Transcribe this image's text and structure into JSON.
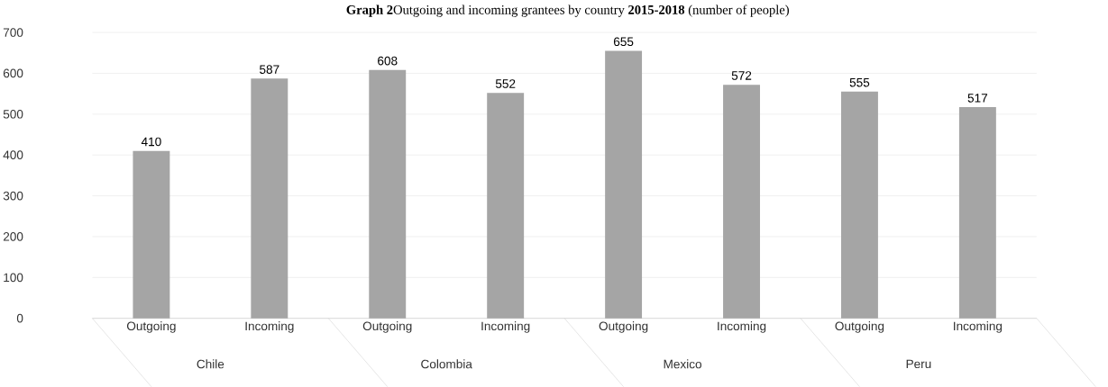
{
  "chart_data": {
    "type": "bar",
    "title": "**Graph 2**Outgoing and incoming grantees by country **2015-2018** (number of people)",
    "categories": [
      "Outgoing",
      "Incoming",
      "Outgoing",
      "Incoming",
      "Outgoing",
      "Incoming",
      "Outgoing",
      "Incoming"
    ],
    "values": [
      410,
      587,
      608,
      552,
      655,
      572,
      555,
      517
    ],
    "color": "#a5a5a5",
    "ylim": [
      0,
      700
    ],
    "yticks": [
      0,
      100,
      200,
      300,
      400,
      500,
      600,
      700
    ],
    "grid": "y",
    "data_labels": true,
    "annotations": [
      "Chile",
      "Colombia",
      "Mexico",
      "Peru"
    ]
  }
}
